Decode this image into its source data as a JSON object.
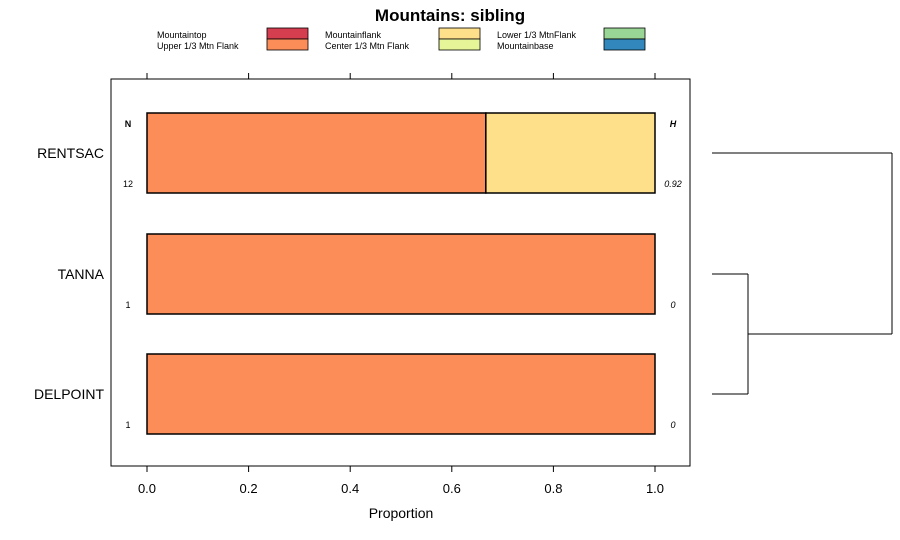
{
  "chart_data": {
    "type": "bar",
    "orientation": "horizontal",
    "stacked": true,
    "title": "Mountains: sibling",
    "xlabel": "Proportion",
    "xlim": [
      -0.07,
      1.07
    ],
    "xticks": [
      "0.0",
      "0.2",
      "0.4",
      "0.6",
      "0.8",
      "1.0"
    ],
    "xtick_values": [
      0,
      0.2,
      0.4,
      0.6,
      0.8,
      1.0
    ],
    "categories": [
      "RENTSAC",
      "TANNA",
      "DELPOINT"
    ],
    "n_header": "N",
    "h_header": "H",
    "n_values": [
      "12",
      "1",
      "1"
    ],
    "h_values": [
      "0.92",
      "0",
      "0"
    ],
    "legend_position": "top",
    "legend": [
      {
        "name": "Mountaintop",
        "color": "#D53E4F"
      },
      {
        "name": "Mountainflank",
        "color": "#FEE08B"
      },
      {
        "name": "Lower 1/3 MtnFlank",
        "color": "#99D594"
      },
      {
        "name": "Upper 1/3 Mtn Flank",
        "color": "#FC8D59"
      },
      {
        "name": "Center 1/3 Mtn Flank",
        "color": "#E6F598"
      },
      {
        "name": "Mountainbase",
        "color": "#3288BD"
      }
    ],
    "series": [
      {
        "name": "Mountaintop",
        "color": "#D53E4F",
        "values": [
          0,
          0,
          0
        ]
      },
      {
        "name": "Upper 1/3 Mtn Flank",
        "color": "#FC8D59",
        "values": [
          0.667,
          1.0,
          1.0
        ]
      },
      {
        "name": "Mountainflank",
        "color": "#FEE08B",
        "values": [
          0.333,
          0,
          0
        ]
      },
      {
        "name": "Center 1/3 Mtn Flank",
        "color": "#E6F598",
        "values": [
          0,
          0,
          0
        ]
      },
      {
        "name": "Lower 1/3 MtnFlank",
        "color": "#99D594",
        "values": [
          0,
          0,
          0
        ]
      },
      {
        "name": "Mountainbase",
        "color": "#3288BD",
        "values": [
          0,
          0,
          0
        ]
      }
    ],
    "dendrogram": {
      "leaves": [
        "RENTSAC",
        "TANNA",
        "DELPOINT"
      ],
      "merges": [
        {
          "left": "TANNA",
          "right": "DELPOINT",
          "height": 0.2
        },
        {
          "left": "RENTSAC",
          "right": "TANNA+DELPOINT",
          "height": 1.0
        }
      ]
    }
  }
}
